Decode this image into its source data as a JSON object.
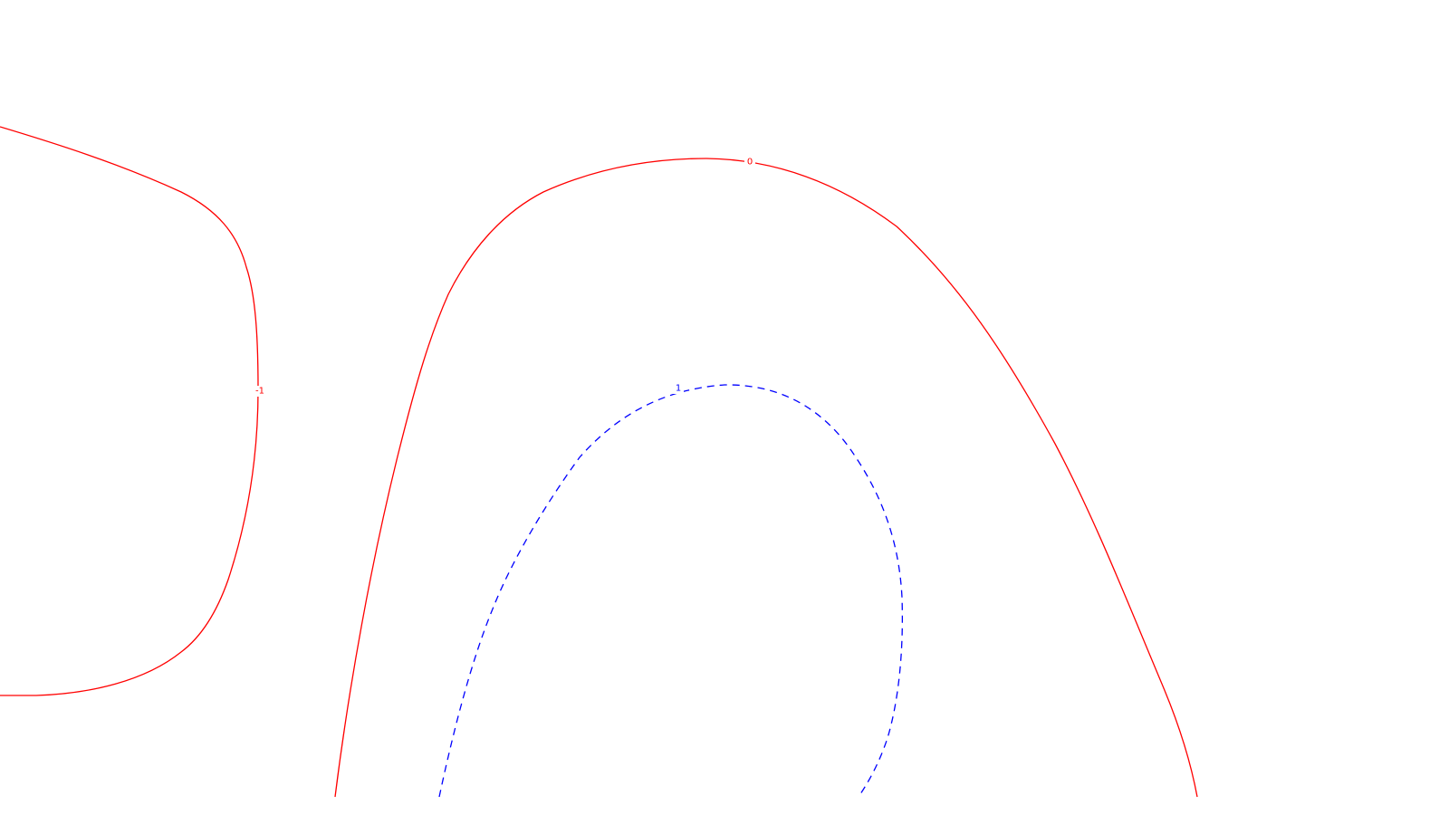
{
  "map": {
    "background_color": "#ffffff",
    "contours": [
      {
        "name": "contour-minus-1",
        "label": "-1",
        "color": "#ff0000",
        "style": "solid"
      },
      {
        "name": "contour-0",
        "label": "0",
        "color": "#ff0000",
        "style": "solid"
      },
      {
        "name": "contour-plus-1",
        "label": "1",
        "color": "#0000ff",
        "style": "dashed"
      }
    ]
  }
}
